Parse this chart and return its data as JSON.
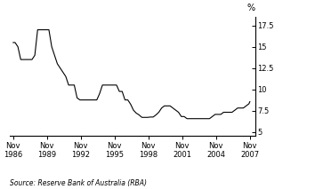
{
  "ylabel": "%",
  "source": "Source: Reserve Bank of Australia (RBA)",
  "background_color": "#ffffff",
  "line_color": "#000000",
  "yticks": [
    5.0,
    7.5,
    10.0,
    12.5,
    15.0,
    17.5
  ],
  "xtick_years": [
    1986,
    1989,
    1992,
    1995,
    1998,
    2001,
    2004,
    2007
  ],
  "xtick_labels": [
    "Nov\n1986",
    "Nov\n1989",
    "Nov\n1992",
    "Nov\n1995",
    "Nov\n1998",
    "Nov\n2001",
    "Nov\n2004",
    "Nov\n2007"
  ],
  "ylim": [
    4.5,
    18.5
  ],
  "xlim_start": 1986.5,
  "xlim_end": 2008.3,
  "data": {
    "dates": [
      1986.83,
      1987.0,
      1987.25,
      1987.5,
      1987.75,
      1988.0,
      1988.25,
      1988.5,
      1988.75,
      1989.0,
      1989.25,
      1989.5,
      1989.75,
      1990.0,
      1990.25,
      1990.5,
      1990.75,
      1991.0,
      1991.25,
      1991.5,
      1991.75,
      1992.0,
      1992.25,
      1992.5,
      1992.75,
      1993.0,
      1993.25,
      1993.5,
      1993.75,
      1994.0,
      1994.25,
      1994.5,
      1994.75,
      1995.0,
      1995.25,
      1995.5,
      1995.75,
      1996.0,
      1996.25,
      1996.5,
      1996.75,
      1997.0,
      1997.25,
      1997.5,
      1997.75,
      1998.0,
      1998.25,
      1998.5,
      1998.75,
      1999.0,
      1999.25,
      1999.5,
      1999.75,
      2000.0,
      2000.25,
      2000.5,
      2000.75,
      2001.0,
      2001.25,
      2001.5,
      2001.75,
      2002.0,
      2002.25,
      2002.5,
      2002.75,
      2003.0,
      2003.25,
      2003.5,
      2003.75,
      2004.0,
      2004.25,
      2004.5,
      2004.75,
      2005.0,
      2005.25,
      2005.5,
      2005.75,
      2006.0,
      2006.25,
      2006.5,
      2006.75,
      2007.0,
      2007.25,
      2007.5,
      2007.75,
      2007.83
    ],
    "values": [
      15.5,
      15.5,
      15.0,
      13.5,
      13.5,
      13.5,
      13.5,
      13.5,
      14.0,
      17.0,
      17.0,
      17.0,
      17.0,
      17.0,
      15.0,
      14.0,
      13.0,
      12.5,
      12.0,
      11.5,
      10.5,
      10.5,
      10.5,
      9.0,
      8.75,
      8.75,
      8.75,
      8.75,
      8.75,
      8.75,
      8.75,
      9.5,
      10.5,
      10.5,
      10.5,
      10.5,
      10.5,
      10.5,
      9.75,
      9.75,
      8.75,
      8.75,
      8.25,
      7.55,
      7.2,
      6.99,
      6.7,
      6.7,
      6.7,
      6.74,
      6.74,
      6.99,
      7.3,
      7.8,
      8.05,
      8.05,
      8.05,
      7.8,
      7.55,
      7.3,
      6.8,
      6.8,
      6.55,
      6.55,
      6.55,
      6.55,
      6.55,
      6.55,
      6.55,
      6.55,
      6.55,
      6.8,
      7.05,
      7.05,
      7.05,
      7.3,
      7.3,
      7.3,
      7.3,
      7.55,
      7.8,
      7.8,
      7.8,
      8.05,
      8.3,
      8.55
    ]
  }
}
